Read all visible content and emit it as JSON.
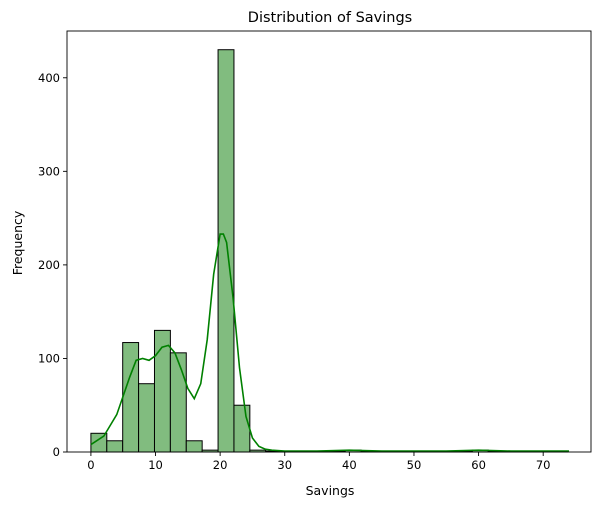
{
  "chart_data": {
    "type": "bar",
    "title": "Distribution of Savings",
    "xlabel": "Savings",
    "ylabel": "Frequency",
    "xlim": [
      -3.7,
      77.4
    ],
    "ylim": [
      0,
      450
    ],
    "x_ticks": [
      0,
      10,
      20,
      30,
      40,
      50,
      60,
      70
    ],
    "y_ticks": [
      0,
      100,
      200,
      300,
      400
    ],
    "grid": false,
    "legend": "none",
    "bin_width": 2.46,
    "bins": [
      {
        "x0": 0.0,
        "x1": 2.46,
        "count": 20
      },
      {
        "x0": 2.46,
        "x1": 4.92,
        "count": 12
      },
      {
        "x0": 4.92,
        "x1": 7.38,
        "count": 117
      },
      {
        "x0": 7.38,
        "x1": 9.84,
        "count": 73
      },
      {
        "x0": 9.84,
        "x1": 12.3,
        "count": 130
      },
      {
        "x0": 12.3,
        "x1": 14.76,
        "count": 106
      },
      {
        "x0": 14.76,
        "x1": 17.22,
        "count": 12
      },
      {
        "x0": 17.22,
        "x1": 19.68,
        "count": 2
      },
      {
        "x0": 19.68,
        "x1": 22.14,
        "count": 430
      },
      {
        "x0": 22.14,
        "x1": 24.6,
        "count": 50
      },
      {
        "x0": 24.6,
        "x1": 27.06,
        "count": 2
      },
      {
        "x0": 27.06,
        "x1": 29.52,
        "count": 1
      },
      {
        "x0": 29.52,
        "x1": 31.98,
        "count": 1
      },
      {
        "x0": 31.98,
        "x1": 34.44,
        "count": 1
      },
      {
        "x0": 34.44,
        "x1": 36.9,
        "count": 1
      },
      {
        "x0": 36.9,
        "x1": 39.36,
        "count": 1
      },
      {
        "x0": 39.36,
        "x1": 41.82,
        "count": 2
      },
      {
        "x0": 41.82,
        "x1": 44.28,
        "count": 1
      },
      {
        "x0": 44.28,
        "x1": 46.74,
        "count": 1
      },
      {
        "x0": 46.74,
        "x1": 49.2,
        "count": 1
      },
      {
        "x0": 49.2,
        "x1": 51.66,
        "count": 1
      },
      {
        "x0": 51.66,
        "x1": 54.12,
        "count": 1
      },
      {
        "x0": 54.12,
        "x1": 56.58,
        "count": 1
      },
      {
        "x0": 56.58,
        "x1": 59.04,
        "count": 1
      },
      {
        "x0": 59.04,
        "x1": 61.5,
        "count": 2
      },
      {
        "x0": 61.5,
        "x1": 63.96,
        "count": 1
      },
      {
        "x0": 63.96,
        "x1": 66.42,
        "count": 1
      },
      {
        "x0": 66.42,
        "x1": 68.88,
        "count": 1
      },
      {
        "x0": 68.88,
        "x1": 71.34,
        "count": 1
      },
      {
        "x0": 71.34,
        "x1": 73.8,
        "count": 1
      }
    ],
    "kde": {
      "x": [
        0,
        2,
        4,
        5,
        6,
        7,
        8,
        9,
        10,
        11,
        12,
        13,
        14,
        15,
        16,
        17,
        18,
        19,
        20,
        20.5,
        21,
        22,
        23,
        24,
        25,
        26,
        27,
        28,
        30,
        35,
        40,
        45,
        50,
        55,
        60,
        65,
        70,
        74
      ],
      "y": [
        8,
        17,
        40,
        60,
        80,
        98,
        100,
        98,
        103,
        112,
        114,
        106,
        88,
        68,
        57,
        73,
        120,
        190,
        233,
        233,
        224,
        165,
        90,
        38,
        15,
        6,
        3,
        2,
        1,
        1,
        2,
        1,
        1,
        1,
        2,
        1,
        1,
        1
      ]
    },
    "colors": {
      "bar_fill": "#81bc7f",
      "bar_edge": "#000000",
      "kde_line": "#008000"
    }
  }
}
